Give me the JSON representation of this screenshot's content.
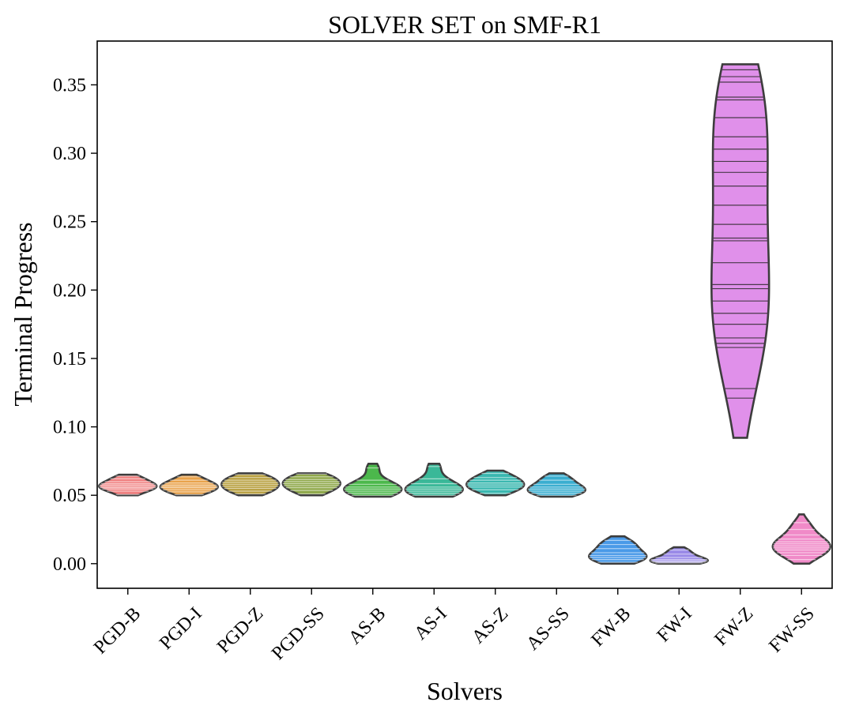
{
  "chart_data": {
    "type": "violin",
    "title": "SOLVER SET on SMF-R1",
    "xlabel": "Solvers",
    "ylabel": "Terminal Progress",
    "ylim": [
      -0.018,
      0.382
    ],
    "yticks": [
      0.0,
      0.05,
      0.1,
      0.15,
      0.2,
      0.25,
      0.3,
      0.35
    ],
    "ytick_labels": [
      "0.00",
      "0.05",
      "0.10",
      "0.15",
      "0.20",
      "0.25",
      "0.30",
      "0.35"
    ],
    "grid": false,
    "categories": [
      "PGD-B",
      "PGD-I",
      "PGD-Z",
      "PGD-SS",
      "AS-B",
      "AS-I",
      "AS-Z",
      "AS-SS",
      "FW-B",
      "FW-I",
      "FW-Z",
      "FW-SS"
    ],
    "series": [
      {
        "category": "PGD-B",
        "color": "#f08080",
        "min": 0.05,
        "max": 0.065,
        "values": [
          0.0505,
          0.053,
          0.0545,
          0.0555,
          0.0565,
          0.0575,
          0.0585,
          0.06,
          0.062,
          0.064
        ]
      },
      {
        "category": "PGD-I",
        "color": "#e9a24a",
        "min": 0.05,
        "max": 0.065,
        "values": [
          0.0505,
          0.0525,
          0.054,
          0.0555,
          0.0565,
          0.0575,
          0.059,
          0.061,
          0.0635
        ]
      },
      {
        "category": "PGD-Z",
        "color": "#b8a040",
        "min": 0.05,
        "max": 0.066,
        "values": [
          0.051,
          0.053,
          0.055,
          0.0565,
          0.058,
          0.0595,
          0.061,
          0.063,
          0.065
        ]
      },
      {
        "category": "PGD-SS",
        "color": "#8fa84a",
        "min": 0.05,
        "max": 0.066,
        "values": [
          0.051,
          0.0535,
          0.0555,
          0.057,
          0.0585,
          0.06,
          0.0615,
          0.0635,
          0.0655
        ]
      },
      {
        "category": "AS-B",
        "color": "#4cb84c",
        "min": 0.049,
        "max": 0.073,
        "values": [
          0.05,
          0.0515,
          0.053,
          0.0545,
          0.056,
          0.058,
          0.061,
          0.07
        ]
      },
      {
        "category": "AS-I",
        "color": "#3ab898",
        "min": 0.049,
        "max": 0.073,
        "values": [
          0.05,
          0.0515,
          0.053,
          0.0545,
          0.056,
          0.0585,
          0.062,
          0.071
        ]
      },
      {
        "category": "AS-Z",
        "color": "#3ab8b0",
        "min": 0.05,
        "max": 0.068,
        "values": [
          0.0515,
          0.054,
          0.056,
          0.0575,
          0.059,
          0.061,
          0.063,
          0.066
        ]
      },
      {
        "category": "AS-SS",
        "color": "#3aaed0",
        "min": 0.049,
        "max": 0.066,
        "values": [
          0.05,
          0.0515,
          0.053,
          0.0545,
          0.056,
          0.058,
          0.061,
          0.064
        ]
      },
      {
        "category": "FW-B",
        "color": "#4a9ae8",
        "min": 0.0,
        "max": 0.02,
        "values": [
          0.001,
          0.003,
          0.0045,
          0.006,
          0.008,
          0.011,
          0.014,
          0.017
        ]
      },
      {
        "category": "FW-I",
        "color": "#9a8ae8",
        "min": 0.0,
        "max": 0.012,
        "values": [
          0.0005,
          0.0012,
          0.002,
          0.003,
          0.0045,
          0.007,
          0.01
        ]
      },
      {
        "category": "FW-Z",
        "color": "#e090ea",
        "min": 0.092,
        "max": 0.365,
        "values": [
          0.121,
          0.128,
          0.158,
          0.161,
          0.165,
          0.175,
          0.183,
          0.192,
          0.201,
          0.204,
          0.22,
          0.236,
          0.238,
          0.248,
          0.262,
          0.276,
          0.286,
          0.294,
          0.303,
          0.312,
          0.326,
          0.339,
          0.341,
          0.352,
          0.356,
          0.361
        ]
      },
      {
        "category": "FW-SS",
        "color": "#f08ac8",
        "min": 0.0,
        "max": 0.036,
        "values": [
          0.003,
          0.006,
          0.008,
          0.01,
          0.0115,
          0.013,
          0.0145,
          0.016,
          0.018,
          0.021,
          0.025,
          0.03
        ]
      }
    ]
  }
}
